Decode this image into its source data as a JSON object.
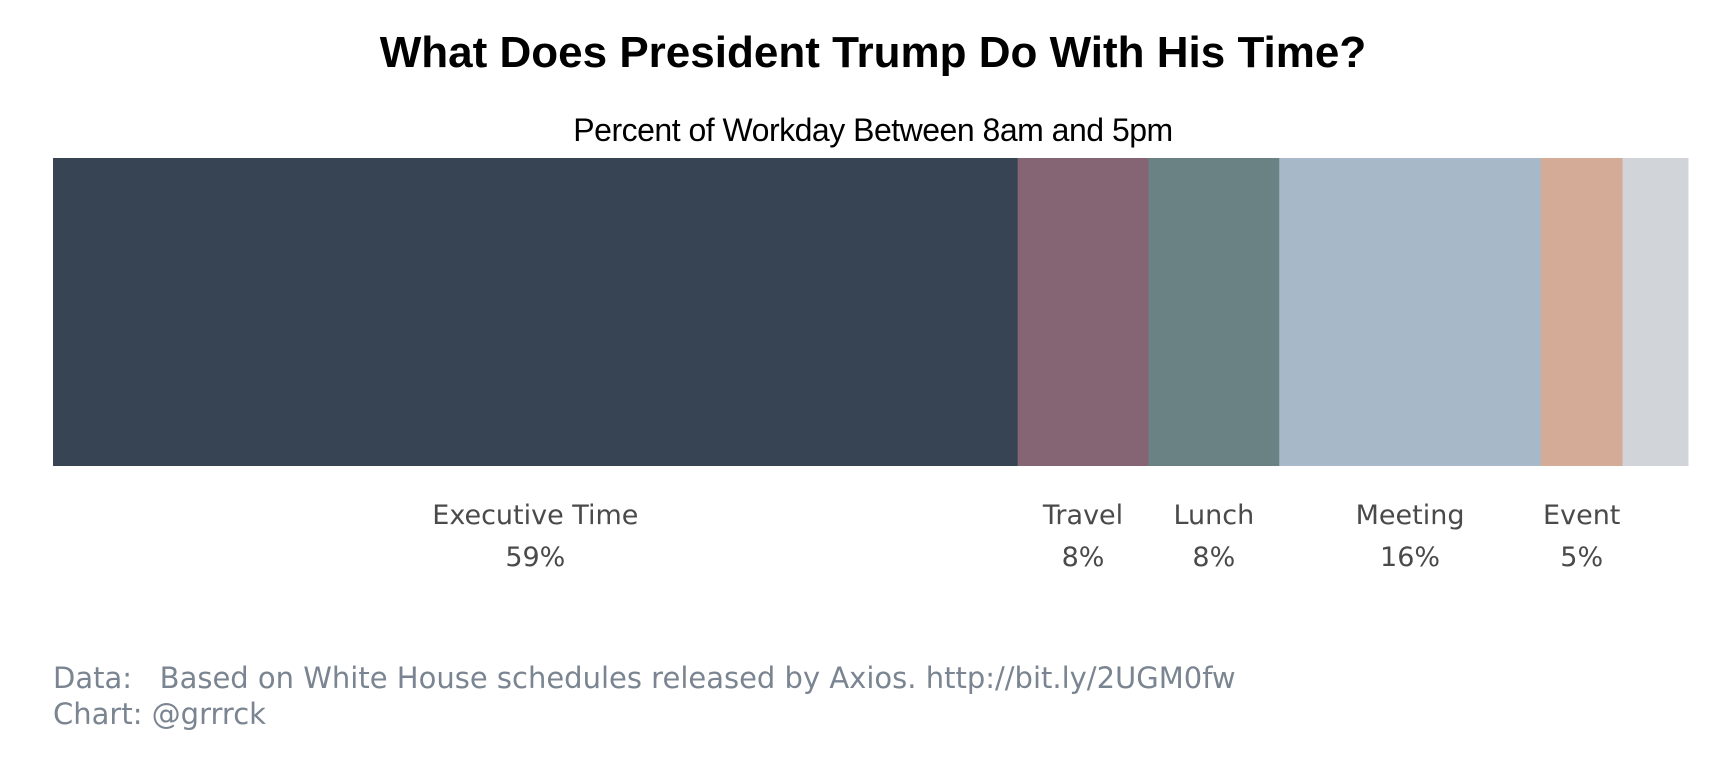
{
  "chart_data": {
    "type": "bar",
    "orientation": "horizontal-stacked",
    "title": "What Does President Trump Do With His Time?",
    "subtitle": "Percent of Workday Between 8am and 5pm",
    "categories": [
      "Executive Time",
      "Travel",
      "Lunch",
      "Meeting",
      "Event",
      ""
    ],
    "values": [
      59,
      8,
      8,
      16,
      5,
      4
    ],
    "value_labels": [
      "59%",
      "8%",
      "8%",
      "16%",
      "5%",
      ""
    ],
    "colors": [
      "#374453",
      "#856574",
      "#6a8283",
      "#a7b8c9",
      "#d4ab96",
      "#d1d5da"
    ],
    "xlim": [
      0,
      100
    ],
    "grid": false,
    "legend": "none"
  },
  "footer": {
    "data_label": "Data:",
    "data_text": "Based on White House schedules released by Axios. http://bit.ly/2UGM0fw",
    "chart_credit": "Chart: @grrrck"
  }
}
